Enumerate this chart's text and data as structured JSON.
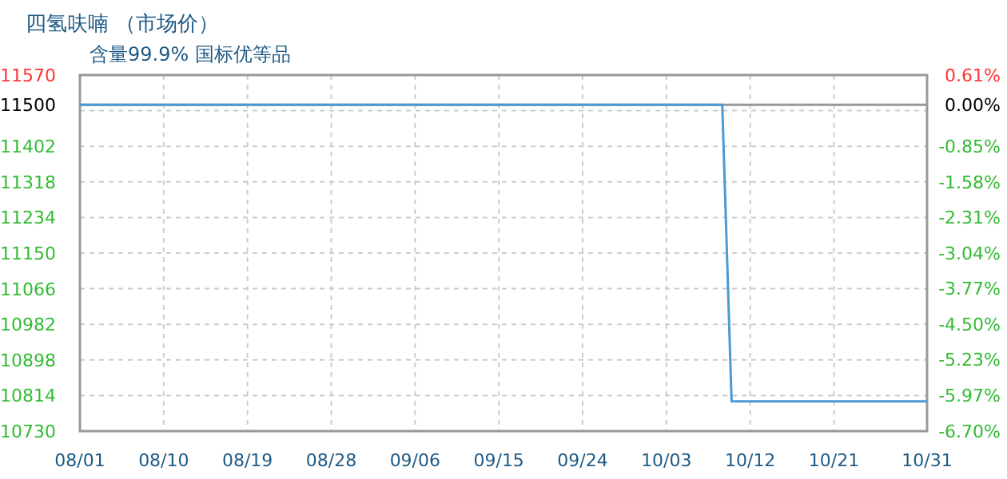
{
  "chart_data": {
    "type": "line",
    "title": "四氢呋喃 （市场价）",
    "subtitle": "含量99.9% 国标优等品",
    "x": [
      "--08-01",
      "--10-09",
      "--10-10",
      "--10-31"
    ],
    "values": [
      11500,
      11500,
      10800,
      10800
    ],
    "color": "#4a9ad4",
    "xlim": [
      "--08-01",
      "--10-31"
    ],
    "xticks": [
      {
        "value": "--08-01",
        "label": "08/01"
      },
      {
        "value": "--08-10",
        "label": "08/10"
      },
      {
        "value": "--08-19",
        "label": "08/19"
      },
      {
        "value": "--08-28",
        "label": "08/28"
      },
      {
        "value": "--09-06",
        "label": "09/06"
      },
      {
        "value": "--09-15",
        "label": "09/15"
      },
      {
        "value": "--09-24",
        "label": "09/24"
      },
      {
        "value": "--10-03",
        "label": "10/03"
      },
      {
        "value": "--10-12",
        "label": "10/12"
      },
      {
        "value": "--10-21",
        "label": "10/21"
      },
      {
        "value": "--10-31",
        "label": "10/31"
      }
    ],
    "ylim": [
      10730,
      11570
    ],
    "yticks": [
      10730,
      10814,
      10898,
      10982,
      11066,
      11150,
      11234,
      11318,
      11402,
      {
        "value": 11486,
        "label": null
      },
      11500,
      11570
    ],
    "y2lim": [
      -6.7,
      0.61
    ],
    "y2ticks": [
      {
        "value": -6.7,
        "label": "-6.70%"
      },
      {
        "value": -5.97,
        "label": "-5.97%"
      },
      {
        "value": -5.23,
        "label": "-5.23%"
      },
      {
        "value": -4.5,
        "label": "-4.50%"
      },
      {
        "value": -3.77,
        "label": "-3.77%"
      },
      {
        "value": -3.04,
        "label": "-3.04%"
      },
      {
        "value": -2.31,
        "label": "-2.31%"
      },
      {
        "value": -1.58,
        "label": "-1.58%"
      },
      {
        "value": -0.85,
        "label": "-0.85%"
      },
      {
        "value": 0.0,
        "label": "0.00%"
      },
      {
        "value": 0.61,
        "label": "0.61%"
      }
    ],
    "grid": true,
    "ref_lines": [
      {
        "axis": "y",
        "value": 11500,
        "color": "#999999"
      }
    ]
  }
}
